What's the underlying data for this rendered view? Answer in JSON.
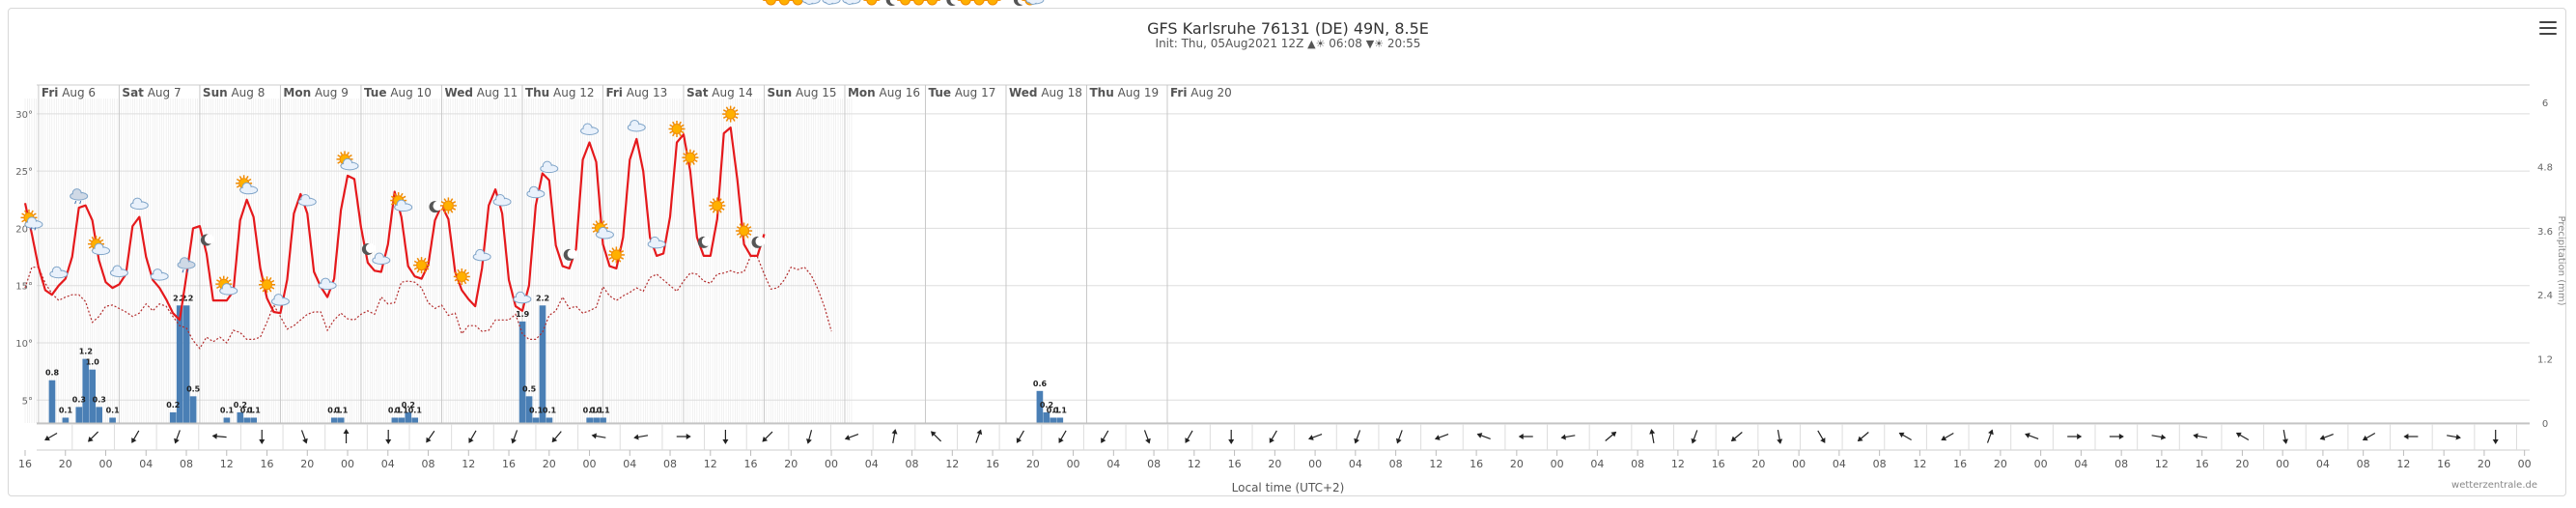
{
  "header": {
    "title": "GFS Karlsruhe 76131 (DE) 49N, 8.5E",
    "init": "Init: Thu, 05Aug2021 12Z",
    "sunrise": "06:08",
    "sunset": "20:55"
  },
  "credit": "wetterzentrale.de",
  "chart_data": {
    "type": "line",
    "title": "GFS Karlsruhe 76131 (DE) 49N, 8.5E",
    "xlabel": "Local time (UTC+2)",
    "ylabel_right": "Precipitation (mm)",
    "days": [
      "Fri Aug 6",
      "Sat Aug 7",
      "Sun Aug 8",
      "Mon Aug 9",
      "Tue Aug 10",
      "Wed Aug 11",
      "Thu Aug 12",
      "Fri Aug 13",
      "Sat Aug 14",
      "Sun Aug 15",
      "Mon Aug 16",
      "Tue Aug 17",
      "Wed Aug 18",
      "Thu Aug 19",
      "Fri Aug 20"
    ],
    "hour_ticks": [
      "16",
      "20",
      "00",
      "04",
      "08",
      "12",
      "16",
      "20",
      "00",
      "04",
      "08",
      "12",
      "16",
      "20",
      "00",
      "04",
      "08",
      "12",
      "16",
      "20",
      "00",
      "04",
      "08",
      "12",
      "16",
      "20",
      "00",
      "04",
      "08",
      "12",
      "16",
      "20",
      "00",
      "04",
      "08",
      "12",
      "16",
      "20",
      "00",
      "04",
      "08",
      "12",
      "16",
      "20",
      "00",
      "04",
      "08",
      "12",
      "16",
      "20",
      "00",
      "04",
      "08",
      "12",
      "16",
      "20",
      "00",
      "04",
      "08",
      "12",
      "16",
      "20",
      "00",
      "04",
      "08",
      "12",
      "16",
      "20",
      "00",
      "04",
      "08",
      "12",
      "16",
      "20",
      "00",
      "04",
      "08",
      "12",
      "16",
      "20",
      "00",
      "04",
      "08",
      "12",
      "16",
      "20",
      "00",
      "04",
      "08",
      "12",
      "16",
      "20"
    ],
    "ylim_temp": [
      3,
      31
    ],
    "y_ticks_left": [
      "30°",
      "25°",
      "20°",
      "15°",
      "10°",
      "5°"
    ],
    "y_ticks_right": [
      "6",
      "4.8",
      "3.6",
      "2.4",
      "1.2",
      "0"
    ],
    "ylim_precip": [
      0,
      6
    ],
    "temperature": [
      22.2,
      19.5,
      16.6,
      14.6,
      14.2,
      15.0,
      15.6,
      17.5,
      21.8,
      22.0,
      20.7,
      17.2,
      15.3,
      14.8,
      15.1,
      16.0,
      20.2,
      21.0,
      17.5,
      15.5,
      14.8,
      13.8,
      12.6,
      12.0,
      15.8,
      20.0,
      20.2,
      17.8,
      13.7,
      13.7,
      13.7,
      14.5,
      20.7,
      22.5,
      21.0,
      16.5,
      13.9,
      12.7,
      12.6,
      15.5,
      21.3,
      23.0,
      21.3,
      16.2,
      14.9,
      14.0,
      15.6,
      21.6,
      24.6,
      24.3,
      20.1,
      17.0,
      16.3,
      16.2,
      18.6,
      23.2,
      21.0,
      16.7,
      15.8,
      15.6,
      16.8,
      20.7,
      22.0,
      20.8,
      16.2,
      14.6,
      13.8,
      13.2,
      16.5,
      22.0,
      23.4,
      21.3,
      15.5,
      13.2,
      12.8,
      15.0,
      22.0,
      24.8,
      24.2,
      18.5,
      16.7,
      16.5,
      18.2,
      26.0,
      27.5,
      25.8,
      18.6,
      16.7,
      16.5,
      19.2,
      26.0,
      27.8,
      25.0,
      19.2,
      17.6,
      17.8,
      21.0,
      27.5,
      28.2,
      25.0,
      19.2,
      17.6,
      17.6,
      20.8,
      28.3,
      28.8,
      24.3,
      18.6,
      17.6,
      17.6,
      19.5
    ],
    "dewpoint": [
      14.8,
      16.6,
      16.6,
      15.2,
      14.3,
      13.7,
      14.0,
      14.2,
      14.2,
      13.6,
      11.8,
      12.3,
      13.2,
      13.3,
      13.0,
      12.7,
      12.3,
      12.6,
      13.4,
      12.8,
      13.4,
      13.2,
      12.3,
      11.5,
      11.3,
      10.2,
      9.5,
      10.5,
      10.1,
      10.5,
      10.0,
      11.1,
      10.9,
      10.3,
      10.3,
      10.5,
      11.8,
      13.3,
      12.3,
      11.2,
      11.5,
      12.0,
      12.5,
      12.7,
      12.7,
      11.1,
      12.0,
      12.6,
      12.1,
      12.0,
      12.5,
      12.8,
      12.5,
      14.0,
      13.4,
      13.5,
      15.3,
      15.4,
      15.3,
      14.8,
      13.5,
      13.0,
      13.3,
      12.4,
      12.6,
      10.8,
      11.5,
      11.5,
      11.0,
      11.1,
      12.0,
      12.0,
      12.0,
      12.5,
      10.8,
      10.3,
      10.3,
      10.9,
      12.4,
      12.8,
      14.0,
      13.0,
      13.2,
      12.6,
      12.8,
      13.1,
      14.9,
      14.1,
      13.7,
      14.1,
      14.4,
      14.8,
      14.5,
      15.7,
      16.0,
      15.5,
      15.0,
      14.5,
      15.4,
      16.1,
      16.0,
      15.4,
      15.2,
      16.0,
      16.1,
      16.3,
      16.1,
      16.2,
      17.6,
      17.5,
      16.0,
      14.7,
      14.8,
      15.5,
      16.6,
      16.4,
      16.6,
      15.9,
      14.7,
      13.1,
      11.0
    ],
    "precipitation": [
      {
        "i": 4,
        "v": 0.8,
        "label": "0.8"
      },
      {
        "i": 6,
        "v": 0.1,
        "label": "0.1"
      },
      {
        "i": 8,
        "v": 0.3,
        "label": "0.3"
      },
      {
        "i": 9,
        "v": 1.2,
        "label": "1.2"
      },
      {
        "i": 10,
        "v": 1.0,
        "label": "1.0"
      },
      {
        "i": 11,
        "v": 0.3,
        "label": "0.3"
      },
      {
        "i": 13,
        "v": 0.1,
        "label": "0.1"
      },
      {
        "i": 22,
        "v": 0.2,
        "label": "0.2"
      },
      {
        "i": 23,
        "v": 2.2,
        "label": "2.2"
      },
      {
        "i": 24,
        "v": 2.2,
        "label": "2.2"
      },
      {
        "i": 25,
        "v": 0.5,
        "label": "0.5"
      },
      {
        "i": 30,
        "v": 0.1,
        "label": "0.1"
      },
      {
        "i": 32,
        "v": 0.2,
        "label": "0.2"
      },
      {
        "i": 33,
        "v": 0.1,
        "label": "0.1"
      },
      {
        "i": 34,
        "v": 0.1,
        "label": "0.1"
      },
      {
        "i": 46,
        "v": 0.1,
        "label": "0.1"
      },
      {
        "i": 47,
        "v": 0.1,
        "label": "0.1"
      },
      {
        "i": 55,
        "v": 0.1,
        "label": "0.1"
      },
      {
        "i": 56,
        "v": 0.1,
        "label": "0.1"
      },
      {
        "i": 57,
        "v": 0.2,
        "label": "0.2"
      },
      {
        "i": 58,
        "v": 0.1,
        "label": "0.1"
      },
      {
        "i": 74,
        "v": 1.9,
        "label": "1.9"
      },
      {
        "i": 75,
        "v": 0.5,
        "label": "0.5"
      },
      {
        "i": 76,
        "v": 0.1,
        "label": "0.1"
      },
      {
        "i": 77,
        "v": 2.2,
        "label": "2.2"
      },
      {
        "i": 78,
        "v": 0.1,
        "label": "0.1"
      },
      {
        "i": 84,
        "v": 0.1,
        "label": "0.1"
      },
      {
        "i": 85,
        "v": 0.1,
        "label": "0.1"
      },
      {
        "i": 86,
        "v": 0.1,
        "label": "0.1"
      },
      {
        "i": 151,
        "v": 0.6,
        "label": "0.6"
      },
      {
        "i": 152,
        "v": 0.2,
        "label": "0.2"
      },
      {
        "i": 153,
        "v": 0.1,
        "label": "0.1"
      },
      {
        "i": 154,
        "v": 0.1,
        "label": "0.1"
      }
    ],
    "wind_dirs": [
      240,
      225,
      210,
      200,
      275,
      180,
      160,
      0,
      180,
      215,
      210,
      200,
      220,
      280,
      260,
      90,
      180,
      225,
      195,
      250,
      10,
      315,
      20,
      210,
      210,
      210,
      160,
      210,
      180,
      210,
      250,
      200,
      200,
      250,
      290,
      270,
      260,
      50,
      350,
      200,
      230,
      170,
      150,
      230,
      300,
      240,
      20,
      290,
      90,
      90,
      100,
      280,
      300,
      170,
      250,
      240,
      270,
      100,
      180,
      230,
      110,
      270,
      300,
      210,
      140,
      60,
      60,
      100
    ],
    "weather_icons": [
      {
        "i": 1,
        "t": "partly-rain"
      },
      {
        "i": 5,
        "t": "cloud"
      },
      {
        "i": 8,
        "t": "cloud-rain"
      },
      {
        "i": 11,
        "t": "partly"
      },
      {
        "i": 14,
        "t": "cloud"
      },
      {
        "i": 17,
        "t": "cloud"
      },
      {
        "i": 20,
        "t": "cloud"
      },
      {
        "i": 24,
        "t": "cloud-rain"
      },
      {
        "i": 27,
        "t": "moon"
      },
      {
        "i": 30,
        "t": "partly"
      },
      {
        "i": 33,
        "t": "partly"
      },
      {
        "i": 36,
        "t": "sun"
      },
      {
        "i": 38,
        "t": "cloud"
      },
      {
        "i": 42,
        "t": "cloud"
      },
      {
        "i": 45,
        "t": "cloud"
      },
      {
        "i": 48,
        "t": "partly"
      },
      {
        "i": 51,
        "t": "moon"
      },
      {
        "i": 53,
        "t": "cloud"
      },
      {
        "i": 56,
        "t": "partly"
      },
      {
        "i": 59,
        "t": "sun"
      },
      {
        "i": 61,
        "t": "moon"
      },
      {
        "i": 63,
        "t": "sun"
      },
      {
        "i": 65,
        "t": "sun"
      },
      {
        "i": 68,
        "t": "cloud"
      },
      {
        "i": 71,
        "t": "cloud"
      },
      {
        "i": 74,
        "t": "cloud"
      },
      {
        "i": 76,
        "t": "cloud"
      },
      {
        "i": 78,
        "t": "cloud"
      },
      {
        "i": 81,
        "t": "moon"
      },
      {
        "i": 84,
        "t": "cloud"
      },
      {
        "i": 86,
        "t": "partly"
      },
      {
        "i": 88,
        "t": "sun"
      },
      {
        "i": 91,
        "t": "cloud"
      },
      {
        "i": 94,
        "t": "cloud"
      },
      {
        "i": 97,
        "t": "sun"
      },
      {
        "i": 99,
        "t": "sun"
      },
      {
        "i": 101,
        "t": "moon"
      },
      {
        "i": 103,
        "t": "sun"
      },
      {
        "i": 105,
        "t": "sun"
      },
      {
        "i": 107,
        "t": "sun"
      },
      {
        "i": 109,
        "t": "moon"
      },
      {
        "i": 111,
        "t": "sun"
      },
      {
        "i": 113,
        "t": "sun"
      },
      {
        "i": 115,
        "t": "sun"
      },
      {
        "i": 117,
        "t": "cloud"
      },
      {
        "i": 120,
        "t": "cloud"
      },
      {
        "i": 123,
        "t": "cloud"
      },
      {
        "i": 126,
        "t": "sun"
      },
      {
        "i": 129,
        "t": "moon"
      },
      {
        "i": 131,
        "t": "sun"
      },
      {
        "i": 133,
        "t": "sun"
      },
      {
        "i": 135,
        "t": "sun"
      },
      {
        "i": 138,
        "t": "moon"
      },
      {
        "i": 140,
        "t": "sun"
      },
      {
        "i": 142,
        "t": "sun"
      },
      {
        "i": 144,
        "t": "sun"
      },
      {
        "i": 148,
        "t": "moon"
      },
      {
        "i": 150,
        "t": "partly"
      }
    ]
  },
  "colors": {
    "temperature": "#e5191c",
    "dewpoint": "#b22b2b",
    "precipitation": "#4a7fb5",
    "grid": "#e6e6e6"
  }
}
